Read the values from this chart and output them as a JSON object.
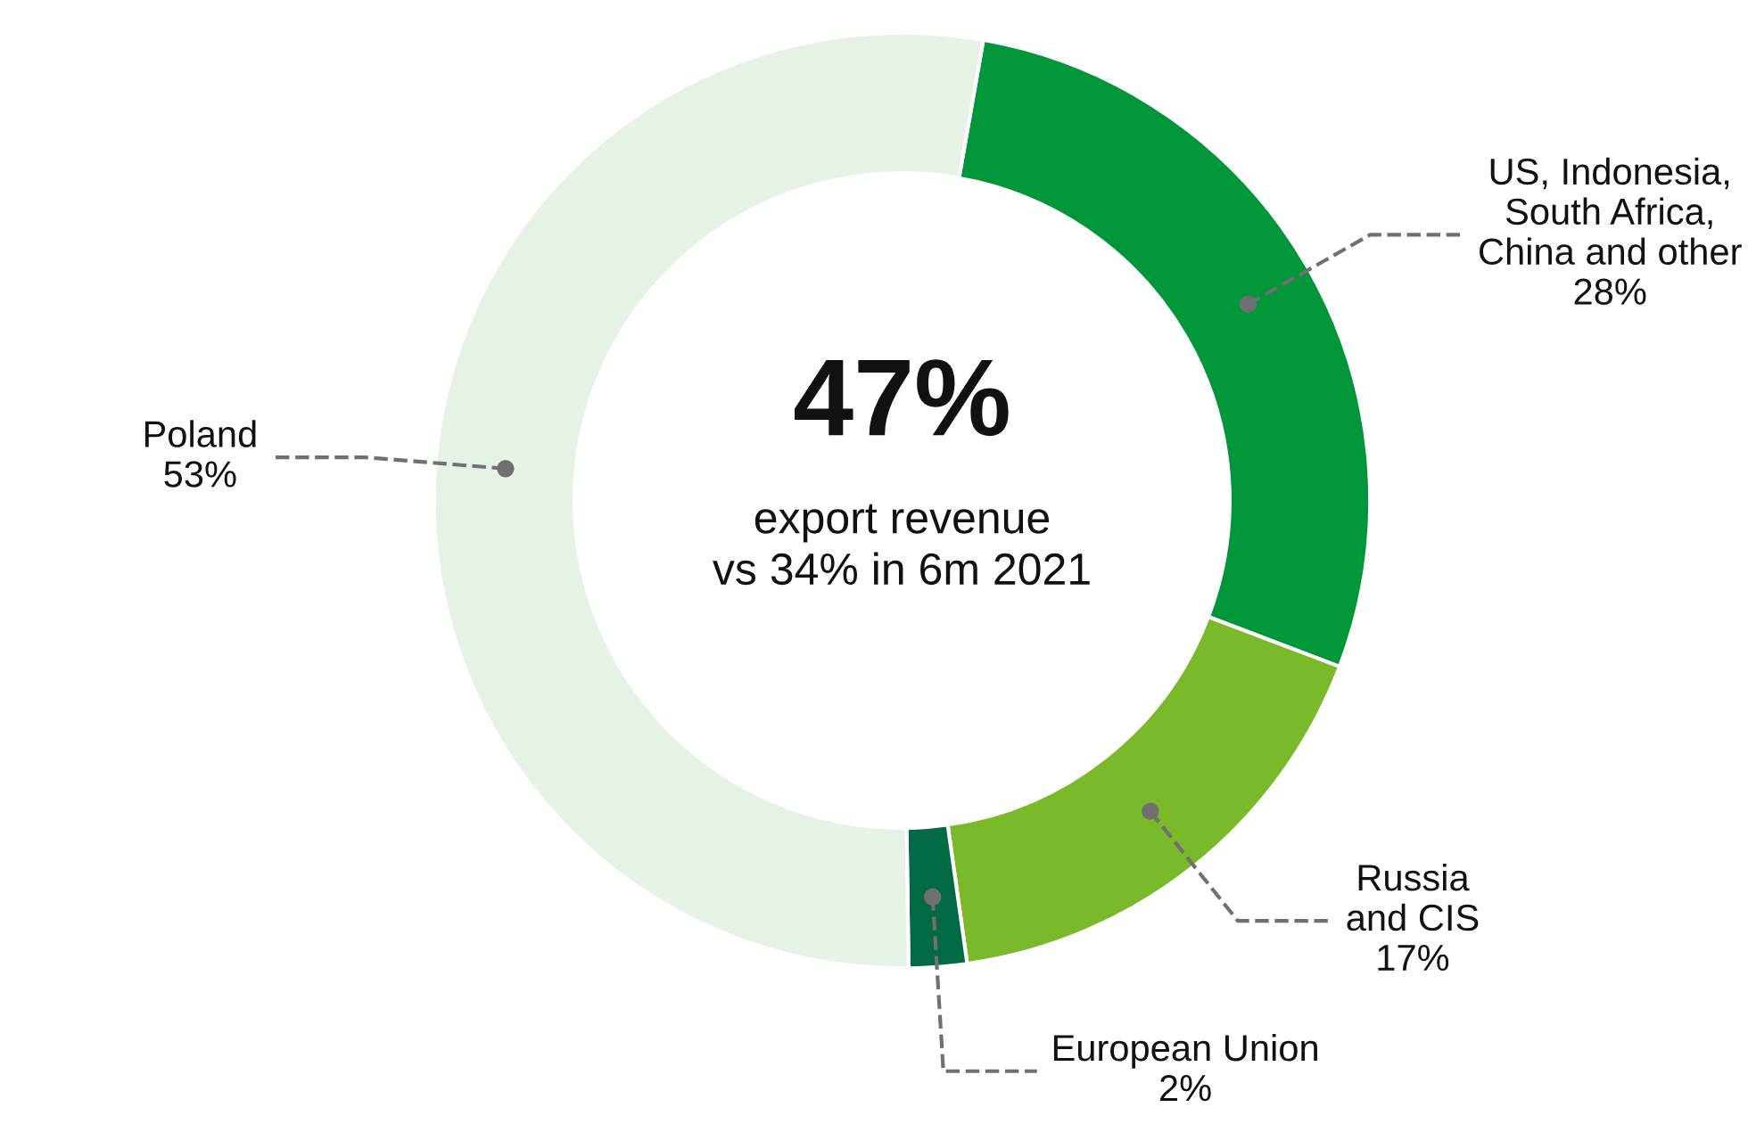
{
  "chart_data": {
    "type": "donut",
    "categories": [
      "US, Indonesia,\nSouth Africa,\nChina and other",
      "Russia\nand CIS",
      "European Union",
      "Poland"
    ],
    "values": [
      28,
      17,
      2,
      53
    ],
    "colors": [
      "#009639",
      "#7ab929",
      "#006a45",
      "#e6f2e6"
    ],
    "annotations": [
      "47%",
      "export revenue\nvs 34% in 6m 2021"
    ],
    "value_labels": [
      "28%",
      "17%",
      "2%",
      "53%"
    ],
    "legend": false
  }
}
